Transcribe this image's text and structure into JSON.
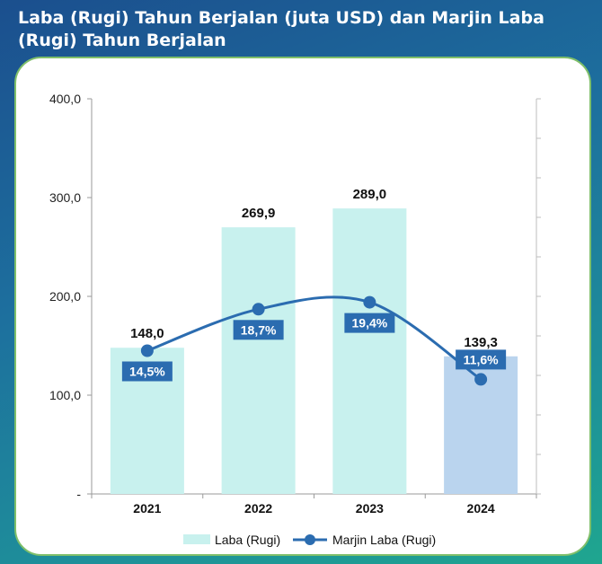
{
  "title": "Laba (Rugi) Tahun Berjalan (juta USD) dan Marjin Laba (Rugi) Tahun Berjalan",
  "colors": {
    "bar": "#c8f1ee",
    "bar_highlight": "#bad4ee",
    "line": "#2b6cb0",
    "label_box": "#2b6cb0"
  },
  "chart_data": {
    "type": "bar",
    "title": "Laba (Rugi) Tahun Berjalan (juta USD) dan Marjin Laba (Rugi) Tahun Berjalan",
    "categories": [
      "2021",
      "2022",
      "2023",
      "2024"
    ],
    "ylim": [
      0,
      400
    ],
    "yticks": [
      0,
      100,
      200,
      300,
      400
    ],
    "ytick_labels": [
      "-",
      "100,0",
      "200,0",
      "300,0",
      "400,0"
    ],
    "series": [
      {
        "name": "Laba (Rugi)",
        "type": "bar",
        "values": [
          148.0,
          269.9,
          289.0,
          139.3
        ],
        "labels": [
          "148,0",
          "269,9",
          "289,0",
          "139,3"
        ]
      },
      {
        "name": "Marjin Laba (Rugi)",
        "type": "line",
        "axis": "secondary",
        "values": [
          14.5,
          18.7,
          19.4,
          11.6
        ],
        "labels": [
          "14,5%",
          "18,7%",
          "19,4%",
          "11,6%"
        ]
      }
    ],
    "legend": [
      "Laba (Rugi)",
      "Marjin Laba (Rugi)"
    ],
    "legend_position": "bottom"
  }
}
